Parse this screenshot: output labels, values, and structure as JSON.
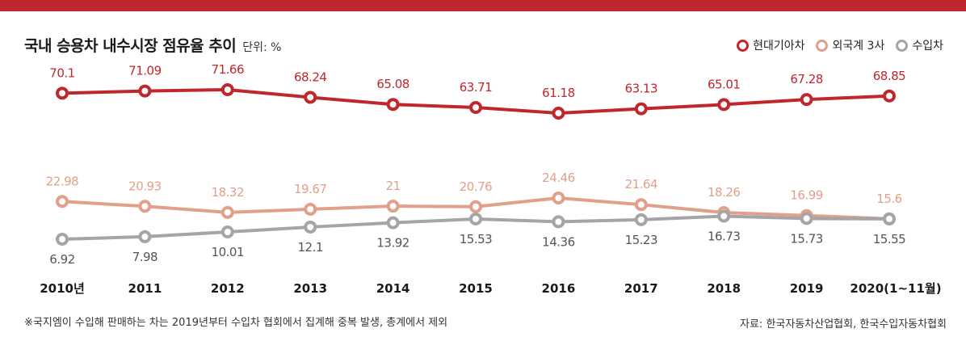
{
  "header": {
    "title": "국내 승용차 내수시장 점유율 추이",
    "unit": "단위: %"
  },
  "legend": [
    {
      "label": "현대기아차",
      "color": "#c0272d"
    },
    {
      "label": "외국계 3사",
      "color": "#e0a089"
    },
    {
      "label": "수입차",
      "color": "#a5a5a8"
    }
  ],
  "chart_data": {
    "type": "line",
    "title": "국내 승용차 내수시장 점유율 추이",
    "unit": "단위: %",
    "categories": [
      "2010년",
      "2011",
      "2012",
      "2013",
      "2014",
      "2015",
      "2016",
      "2017",
      "2018",
      "2019",
      "2020(1~11월)"
    ],
    "series": [
      {
        "name": "현대기아차",
        "color": "#c0272d",
        "values": [
          70.1,
          71.09,
          71.66,
          68.24,
          65.08,
          63.71,
          61.18,
          63.13,
          65.01,
          67.28,
          68.85
        ],
        "labels": [
          "70.1",
          "71.09",
          "71.66",
          "68.24",
          "65.08",
          "63.71",
          "61.18",
          "63.13",
          "65.01",
          "67.28",
          "68.85"
        ]
      },
      {
        "name": "외국계 3사",
        "color": "#e0a089",
        "values": [
          22.98,
          20.93,
          18.32,
          19.67,
          21,
          20.76,
          24.46,
          21.64,
          18.26,
          16.99,
          15.6
        ],
        "labels": [
          "22.98",
          "20.93",
          "18.32",
          "19.67",
          "21",
          "20.76",
          "24.46",
          "21.64",
          "18.26",
          "16.99",
          "15.6"
        ]
      },
      {
        "name": "수입차",
        "color": "#a5a5a8",
        "values": [
          6.92,
          7.98,
          10.01,
          12.1,
          13.92,
          15.53,
          14.36,
          15.23,
          16.73,
          15.73,
          15.55
        ],
        "labels": [
          "6.92",
          "7.98",
          "10.01",
          "12.1",
          "13.92",
          "15.53",
          "14.36",
          "15.23",
          "16.73",
          "15.73",
          "15.55"
        ]
      }
    ],
    "grid": false,
    "legend_position": "top-right"
  },
  "footer": {
    "note": "※국지엠이 수입해 판매하는 차는  2019년부터 수입차 협회에서 집계해 중복 발생, 총계에서 제외",
    "source": "자료: 한국자동차산업협회, 한국수입자동차협회"
  }
}
